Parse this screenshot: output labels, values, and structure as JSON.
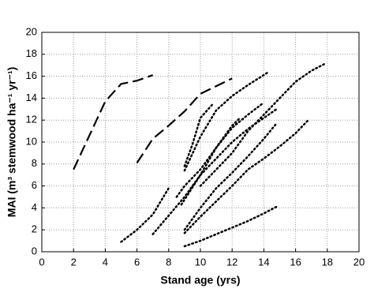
{
  "chart_data": {
    "type": "line",
    "x_label": "Stand age (yrs)",
    "y_label": "MAI (m³ stemwood ha⁻¹ yr⁻¹)",
    "xlim": [
      0,
      20
    ],
    "ylim": [
      0,
      20
    ],
    "xticks": [
      0,
      2,
      4,
      6,
      8,
      10,
      12,
      14,
      16,
      18,
      20
    ],
    "yticks": [
      0,
      2,
      4,
      6,
      8,
      10,
      12,
      14,
      16,
      18,
      20
    ],
    "grid": true,
    "series": [
      {
        "color": "#000000",
        "dash": "dashed",
        "x": [
          2,
          4,
          5,
          6,
          7
        ],
        "values": [
          7.5,
          13.7,
          15.3,
          15.6,
          16.1
        ]
      },
      {
        "color": "#000000",
        "dash": "dashed",
        "x": [
          6,
          7,
          8,
          9,
          10,
          11,
          12
        ],
        "values": [
          8.1,
          10.3,
          11.5,
          12.8,
          14.4,
          15.1,
          15.8
        ]
      },
      {
        "color": "#000000",
        "dash": "dotted",
        "x": [
          5,
          6,
          7,
          8
        ],
        "values": [
          0.9,
          2,
          3.4,
          5.8
        ]
      },
      {
        "color": "#000000",
        "dash": "dotted",
        "x": [
          7,
          8,
          9,
          10,
          11,
          12,
          13,
          14
        ],
        "values": [
          1.6,
          3.3,
          5,
          7,
          9.5,
          11.3,
          12.5,
          13.6
        ]
      },
      {
        "color": "#000000",
        "dash": "dotted",
        "x": [
          9,
          10,
          11,
          12,
          13,
          14.2
        ],
        "values": [
          7.4,
          10.5,
          12.9,
          14.2,
          15.2,
          16.3
        ]
      },
      {
        "color": "#000000",
        "dash": "dotted",
        "x": [
          9,
          9.5,
          10,
          10.8
        ],
        "values": [
          7.8,
          9.8,
          12.2,
          13.5
        ]
      },
      {
        "color": "#000000",
        "dash": "dotted",
        "x": [
          10,
          11,
          12,
          13,
          14,
          15,
          16,
          17,
          17.8
        ],
        "values": [
          6,
          7.5,
          9,
          11,
          12.5,
          14,
          15.5,
          16.5,
          17.1
        ]
      },
      {
        "color": "#000000",
        "dash": "dotted",
        "x": [
          8.8,
          10,
          11,
          12,
          13,
          14,
          14.8
        ],
        "values": [
          4.3,
          7,
          8.5,
          10,
          11.2,
          12.2,
          13
        ]
      },
      {
        "color": "#000000",
        "dash": "dotted",
        "x": [
          9,
          10,
          11,
          12,
          13,
          14,
          14.8
        ],
        "values": [
          2,
          4,
          5.8,
          7.2,
          8.7,
          10.3,
          11.7
        ]
      },
      {
        "color": "#000000",
        "dash": "dotted",
        "x": [
          9,
          10,
          11,
          12,
          13,
          14,
          15,
          16,
          16.8
        ],
        "values": [
          1.7,
          3.2,
          4.6,
          6,
          7.5,
          8.5,
          9.6,
          10.8,
          12
        ]
      },
      {
        "color": "#000000",
        "dash": "dotted",
        "x": [
          9,
          10,
          11,
          12,
          13,
          14,
          14.8
        ],
        "values": [
          0.5,
          1,
          1.6,
          2.2,
          2.8,
          3.5,
          4.1
        ]
      },
      {
        "color": "#000000",
        "dash": "dotted",
        "x": [
          8.5,
          9,
          10,
          11,
          12,
          12.5
        ],
        "values": [
          5,
          6,
          7.5,
          9.5,
          11.5,
          12.2
        ]
      }
    ]
  }
}
